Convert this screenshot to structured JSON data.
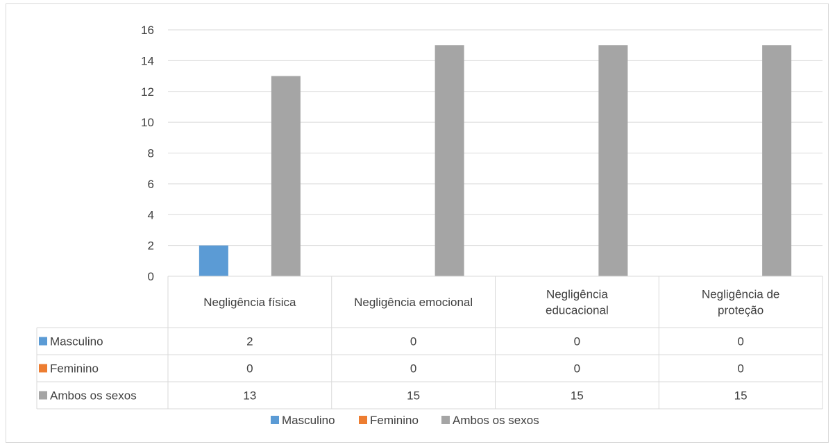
{
  "chart_data": {
    "type": "bar",
    "categories": [
      [
        "Negligência física"
      ],
      [
        "Negligência emocional"
      ],
      [
        "Negligência",
        "educacional"
      ],
      [
        "Negligência de",
        "proteção"
      ]
    ],
    "series": [
      {
        "name": "Masculino",
        "values": [
          2,
          0,
          0,
          0
        ],
        "color": "#5b9bd5"
      },
      {
        "name": "Feminino",
        "values": [
          0,
          0,
          0,
          0
        ],
        "color": "#ed7d31"
      },
      {
        "name": "Ambos os sexos",
        "values": [
          13,
          15,
          15,
          15
        ],
        "color": "#a5a5a5"
      }
    ],
    "table_values": [
      [
        "2",
        "0",
        "0",
        "0"
      ],
      [
        "0",
        "0",
        "0",
        "0"
      ],
      [
        "13",
        "15",
        "15",
        "15"
      ]
    ],
    "ylim": [
      0,
      16
    ],
    "yticks": [
      "0",
      "2",
      "4",
      "6",
      "8",
      "10",
      "12",
      "14",
      "16"
    ],
    "grid": true,
    "data_table": true,
    "legend": "bottom"
  }
}
